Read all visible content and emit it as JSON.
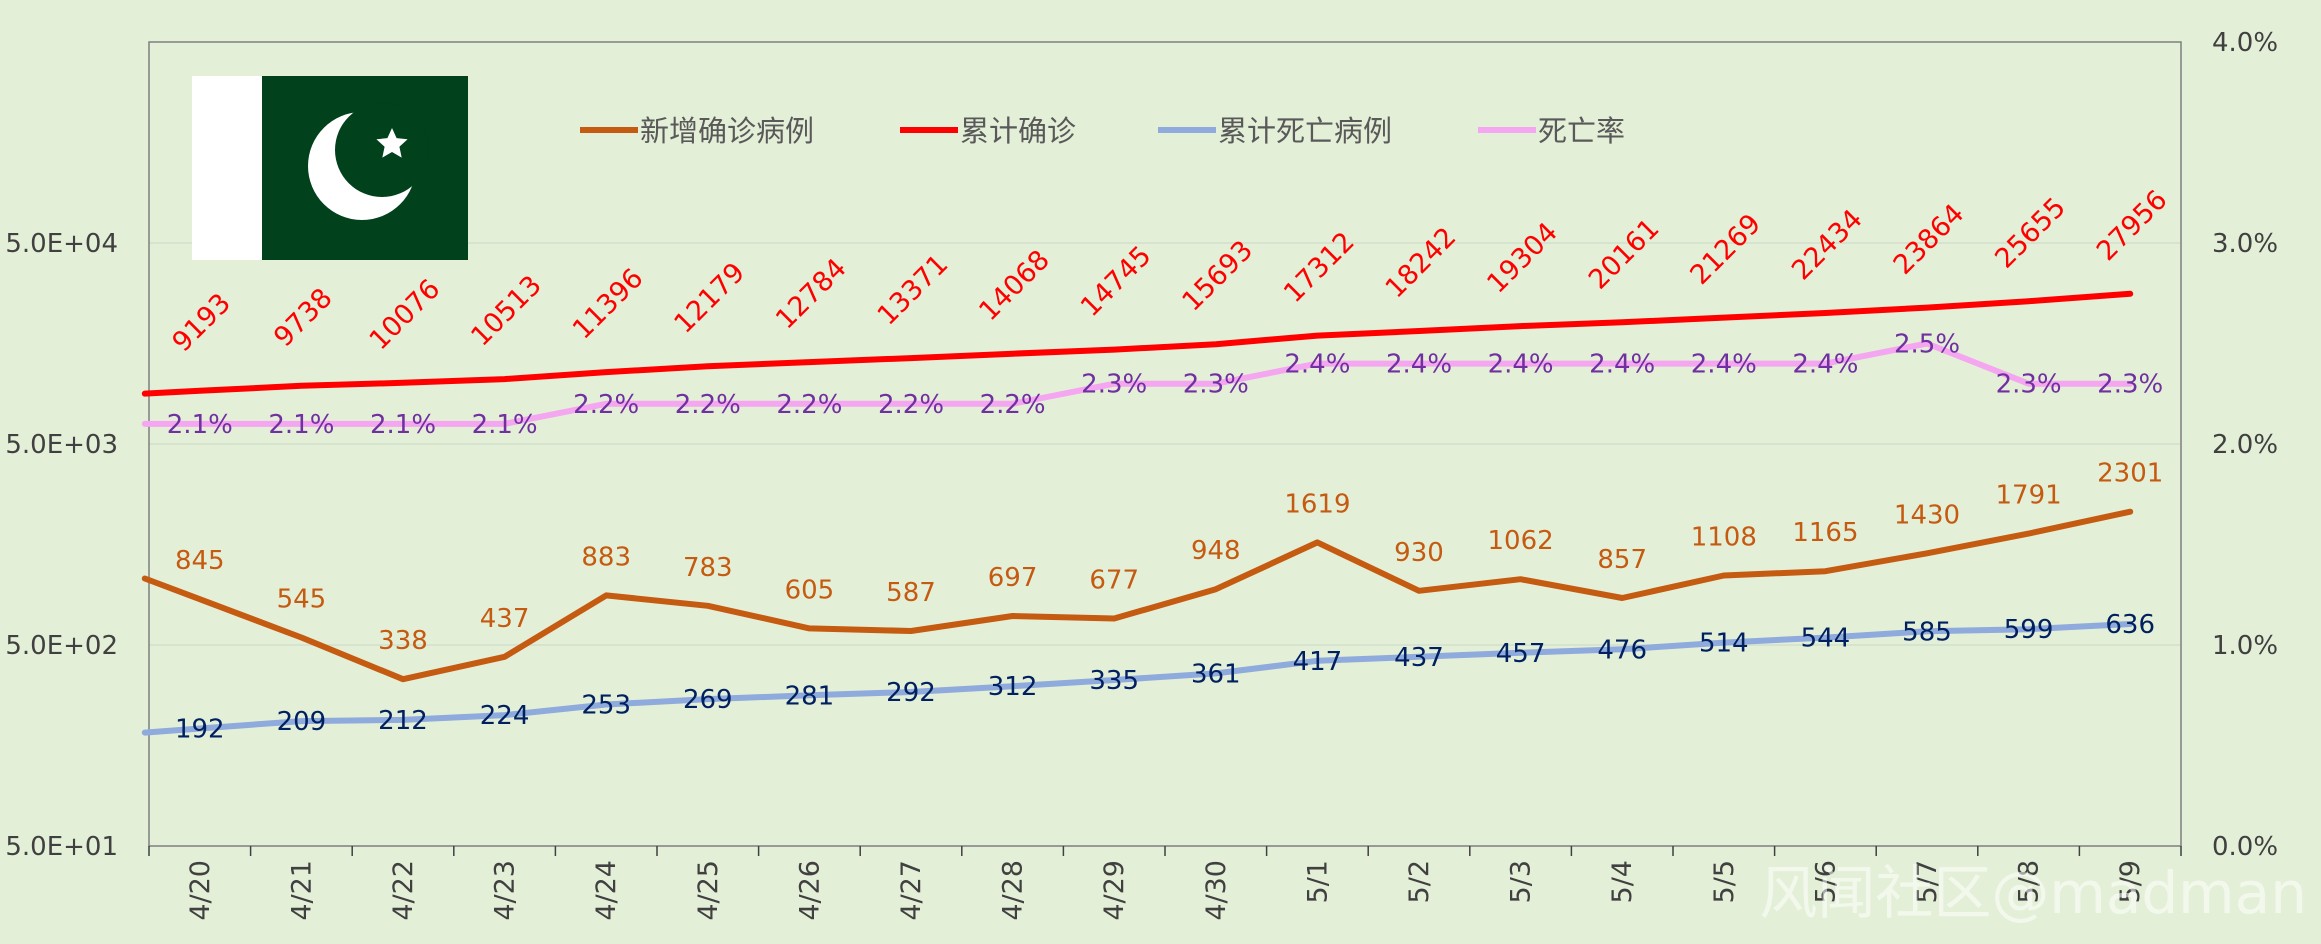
{
  "watermark": "风闻社区@madman",
  "chart_data": {
    "type": "line",
    "title": "",
    "xlabel": "",
    "ylabel": "",
    "x": [
      "4/20",
      "4/21",
      "4/22",
      "4/23",
      "4/24",
      "4/25",
      "4/26",
      "4/27",
      "4/28",
      "4/29",
      "4/30",
      "5/1",
      "5/2",
      "5/3",
      "5/4",
      "5/5",
      "5/6",
      "5/7",
      "5/8",
      "5/9"
    ],
    "y_left": {
      "scale": "log",
      "range": [
        50,
        500000
      ],
      "ticks": [
        "5.0E+01",
        "5.0E+02",
        "5.0E+03",
        "5.0E+04"
      ]
    },
    "y_right": {
      "scale": "linear",
      "range": [
        0,
        4
      ],
      "ticks": [
        "0.0%",
        "1.0%",
        "2.0%",
        "3.0%",
        "4.0%"
      ]
    },
    "grid": true,
    "legend_position": "top",
    "flag": "Pakistan",
    "series": [
      {
        "name": "新增确诊病例",
        "color": "#c55a11",
        "axis": "left",
        "label_color": "#c55a11",
        "values": [
          845,
          545,
          338,
          437,
          883,
          783,
          605,
          587,
          697,
          677,
          948,
          1619,
          930,
          1062,
          857,
          1108,
          1165,
          1430,
          1791,
          2301
        ]
      },
      {
        "name": "累计确诊",
        "color": "#ff0000",
        "axis": "left",
        "label_color": "#ff0000",
        "values": [
          9193,
          9738,
          10076,
          10513,
          11396,
          12179,
          12784,
          13371,
          14068,
          14745,
          15693,
          17312,
          18242,
          19304,
          20161,
          21269,
          22434,
          23864,
          25655,
          27956
        ]
      },
      {
        "name": "累计死亡病例",
        "color": "#8faadc",
        "axis": "left",
        "label_color": "#002060",
        "values": [
          192,
          209,
          212,
          224,
          253,
          269,
          281,
          292,
          312,
          335,
          361,
          417,
          437,
          457,
          476,
          514,
          544,
          585,
          599,
          636
        ]
      },
      {
        "name": "死亡率",
        "color": "#f4a6f0",
        "axis": "right",
        "label_color": "#7030a0",
        "values": [
          2.1,
          2.1,
          2.1,
          2.1,
          2.2,
          2.2,
          2.2,
          2.2,
          2.2,
          2.3,
          2.3,
          2.4,
          2.4,
          2.4,
          2.4,
          2.4,
          2.4,
          2.5,
          2.3,
          2.3
        ],
        "labels": [
          "2.1%",
          "2.1%",
          "2.1%",
          "2.1%",
          "2.2%",
          "2.2%",
          "2.2%",
          "2.2%",
          "2.2%",
          "2.3%",
          "2.3%",
          "2.4%",
          "2.4%",
          "2.4%",
          "2.4%",
          "2.4%",
          "2.4%",
          "2.5%",
          "2.3%",
          "2.3%"
        ]
      }
    ]
  }
}
